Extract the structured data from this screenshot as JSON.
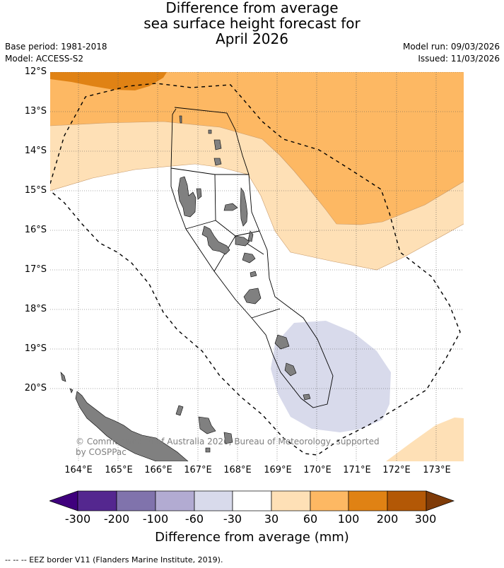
{
  "title": {
    "line1": "Difference from average",
    "line2": "sea surface height forecast for",
    "line3": "April 2026"
  },
  "meta": {
    "base_period": "Base period: 1981-2018",
    "model": "Model: ACCESS-S2",
    "model_run": "Model run: 09/03/2026",
    "issued": "Issued: 11/03/2026"
  },
  "map": {
    "region": "Vanuatu",
    "lon_range": [
      163.35,
      173.7
    ],
    "lat_range": [
      -21.8,
      -12.0
    ],
    "lat_ticks": [
      "12°S",
      "13°S",
      "14°S",
      "15°S",
      "16°S",
      "17°S",
      "18°S",
      "19°S",
      "20°S"
    ],
    "lon_ticks": [
      "164°E",
      "165°E",
      "166°E",
      "167°E",
      "168°E",
      "169°E",
      "170°E",
      "171°E",
      "172°E",
      "173°E"
    ],
    "grid": true,
    "copyright_line1": "© Commonwealth of Australia 2026, Bureau of Meteorology, supported",
    "copyright_line2": "by COSPPac"
  },
  "colorbar": {
    "title": "Difference from average (mm)",
    "tick_labels": [
      "-300",
      "-200",
      "-100",
      "-60",
      "-30",
      "30",
      "60",
      "100",
      "200",
      "300"
    ],
    "colors": [
      "#3f007d",
      "#54278f",
      "#8073ac",
      "#b2abd2",
      "#d8daeb",
      "#ffffff",
      "#fee0b6",
      "#fdb863",
      "#e08214",
      "#b35806",
      "#7f3b08"
    ]
  },
  "legend_note": "--  --  -- EEZ border V11 (Flanders Marine Institute, 2019)."
}
